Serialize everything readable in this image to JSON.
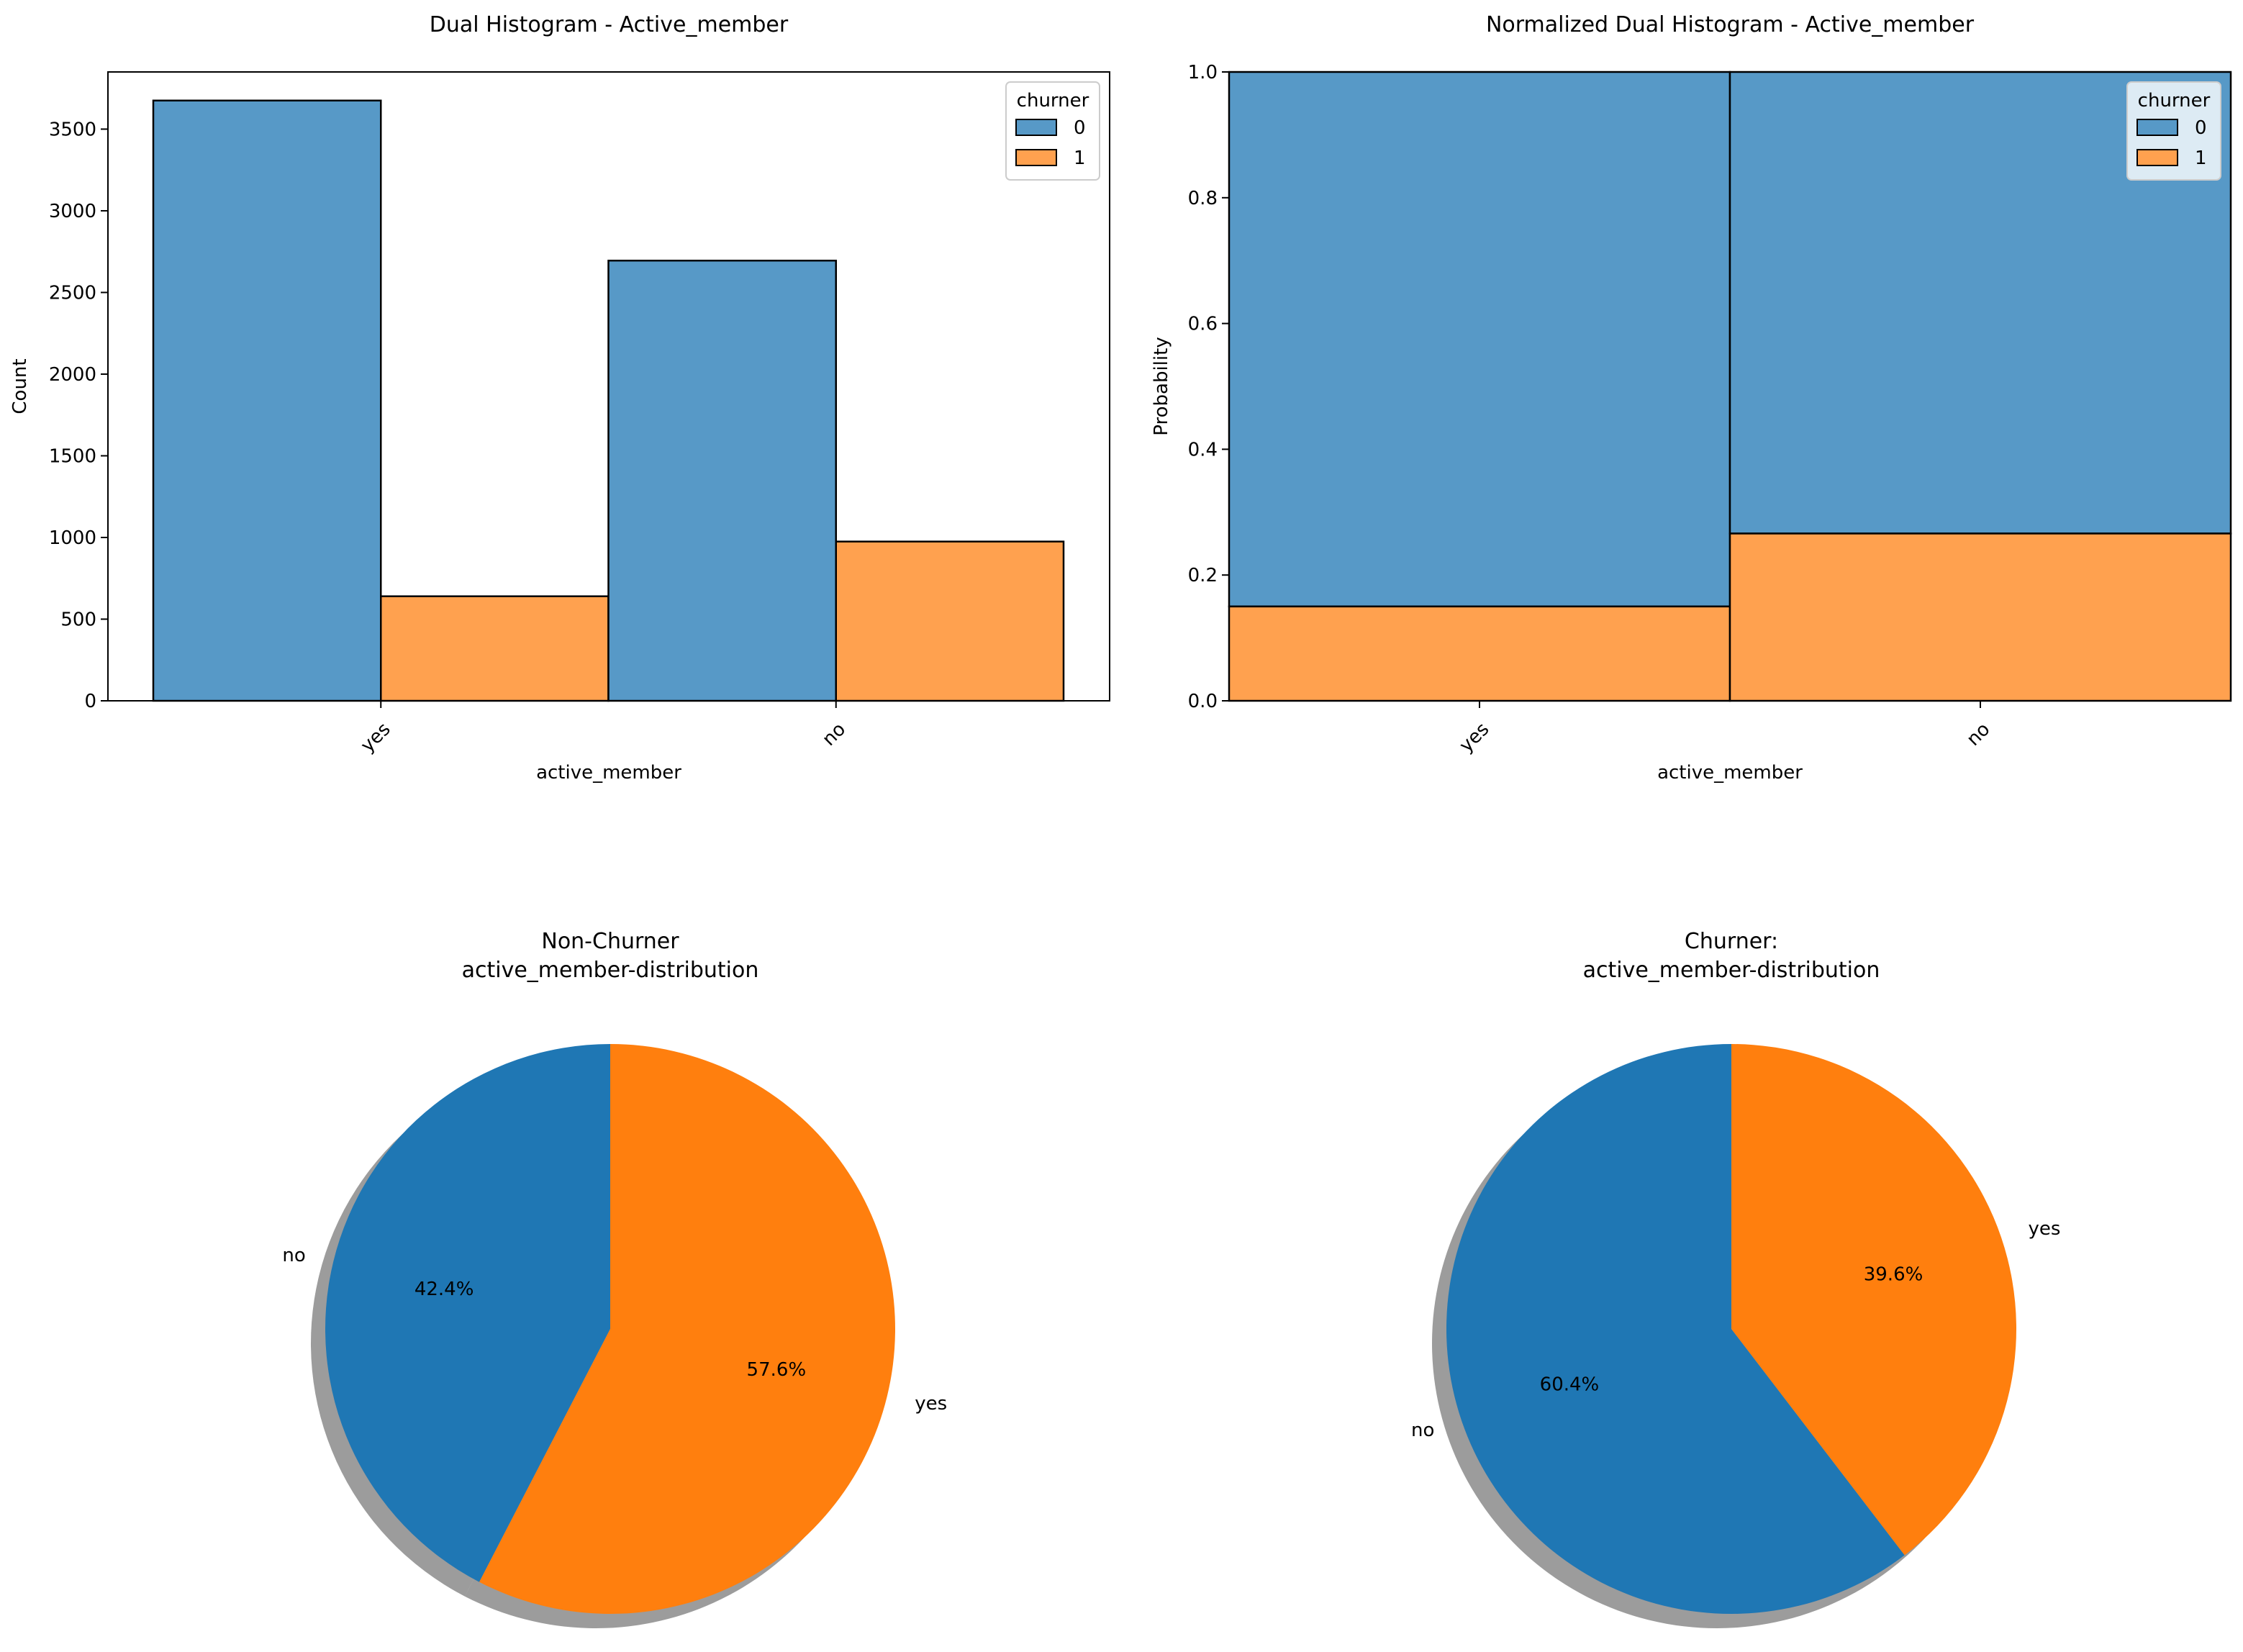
{
  "chart_data": [
    {
      "id": "hist_count",
      "type": "bar",
      "title": "Dual Histogram - Active_member",
      "xlabel": "active_member",
      "ylabel": "Count",
      "categories": [
        "yes",
        "no"
      ],
      "ylim": [
        0,
        3850
      ],
      "yticks": [
        0,
        500,
        1000,
        1500,
        2000,
        2500,
        3000,
        3500
      ],
      "ytick_labels": [
        "0",
        "500",
        "1000",
        "1500",
        "2000",
        "2500",
        "3000",
        "3500"
      ],
      "series": [
        {
          "name": "0",
          "values": [
            3675,
            2695
          ]
        },
        {
          "name": "1",
          "values": [
            640,
            975
          ]
        }
      ],
      "legend": {
        "title": "churner",
        "entries": [
          "0",
          "1"
        ],
        "loc": "upper right"
      }
    },
    {
      "id": "hist_norm",
      "type": "bar",
      "stacked": true,
      "title": "Normalized Dual Histogram - Active_member",
      "xlabel": "active_member",
      "ylabel": "Probability",
      "categories": [
        "yes",
        "no"
      ],
      "ylim": [
        0,
        1.0
      ],
      "yticks": [
        0,
        0.2,
        0.4,
        0.6,
        0.8,
        1.0
      ],
      "ytick_labels": [
        "0.0",
        "0.2",
        "0.4",
        "0.6",
        "0.8",
        "1.0"
      ],
      "series": [
        {
          "name": "0",
          "values": [
            0.85,
            0.734
          ]
        },
        {
          "name": "1",
          "values": [
            0.15,
            0.266
          ]
        }
      ],
      "legend": {
        "title": "churner",
        "entries": [
          "0",
          "1"
        ],
        "loc": "upper right"
      }
    },
    {
      "id": "pie_nonchurner",
      "type": "pie",
      "title": [
        "Non-Churner",
        "active_member-distribution"
      ],
      "labels": [
        "no",
        "yes"
      ],
      "values": [
        42.4,
        57.6
      ],
      "autopct": [
        "42.4%",
        "57.6%"
      ],
      "start_angle": 90,
      "shadow": true
    },
    {
      "id": "pie_churner",
      "type": "pie",
      "title": [
        "Churner:",
        "active_member-distribution"
      ],
      "labels": [
        "no",
        "yes"
      ],
      "values": [
        60.4,
        39.6
      ],
      "autopct": [
        "60.4%",
        "39.6%"
      ],
      "start_angle": 90,
      "shadow": true
    }
  ],
  "colors": {
    "blue_bar": "#5799c7",
    "orange_bar": "#ffa14f",
    "blue_pie": "#1f77b4",
    "orange_pie": "#ff7f0e"
  }
}
